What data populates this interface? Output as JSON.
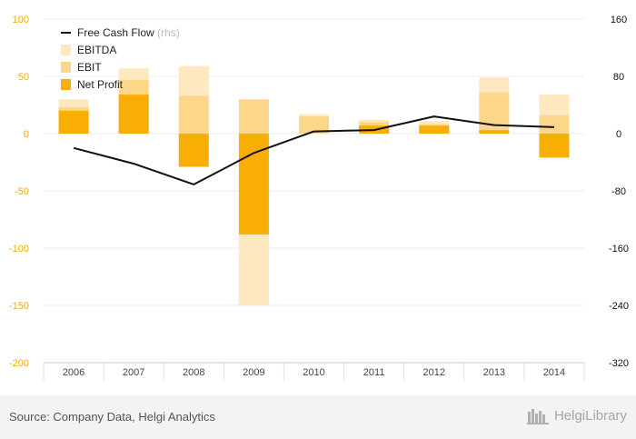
{
  "chart_data": {
    "type": "bar",
    "categories": [
      "2006",
      "2007",
      "2008",
      "2009",
      "2010",
      "2011",
      "2012",
      "2013",
      "2014"
    ],
    "series": [
      {
        "name": "EBITDA",
        "kind": "bar",
        "axis": "left",
        "color": "#fde8c0",
        "values": [
          30,
          57,
          59,
          -150,
          17,
          12,
          11,
          49,
          34
        ]
      },
      {
        "name": "EBIT",
        "kind": "bar",
        "axis": "left",
        "color": "#fcd689",
        "values": [
          23,
          47,
          33,
          30,
          15,
          10,
          8,
          36,
          16
        ]
      },
      {
        "name": "Net Profit",
        "kind": "bar",
        "axis": "left",
        "color": "#f9ae05",
        "values": [
          20,
          34,
          -29,
          -88,
          0,
          7,
          7,
          3,
          -21
        ]
      },
      {
        "name": "Free Cash Flow",
        "label_suffix": "(rhs)",
        "kind": "line",
        "axis": "right",
        "color": "#111111",
        "values": [
          -20,
          -42,
          -71,
          -27,
          3,
          5,
          24,
          12,
          9
        ]
      }
    ],
    "yleft": {
      "ticks": [
        100,
        50,
        0,
        -50,
        -100,
        -150,
        -200
      ],
      "lim": [
        -200,
        100
      ],
      "color": "#f6a800"
    },
    "yright": {
      "ticks": [
        160,
        80,
        0,
        -80,
        -160,
        -240,
        -320
      ],
      "lim": [
        -320,
        160
      ],
      "color": "#111111"
    },
    "legend_position": "top-left",
    "grid": true
  },
  "footer": {
    "source": "Source: Company Data, Helgi Analytics",
    "brand": "HelgiLibrary"
  }
}
